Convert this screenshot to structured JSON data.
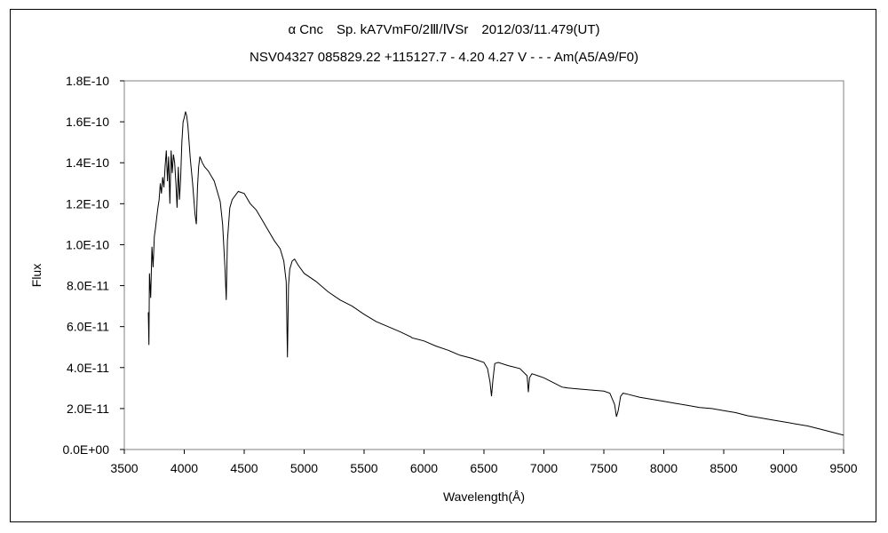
{
  "chart_data": {
    "type": "line",
    "title": "α Cnc　Sp. kA7VmF0/2Ⅲ/ⅣSr　2012/03/11.479(UT)",
    "subtitle": "NSV04327 085829.22 +115127.7 - 4.20 4.27 V - - - Am(A5/A9/F0)",
    "xlabel": "Wavelength(Å)",
    "ylabel": "Flux",
    "xlim": [
      3500,
      9500
    ],
    "ylim": [
      0,
      1.8e-10
    ],
    "xticks": [
      "3500",
      "4000",
      "4500",
      "5000",
      "5500",
      "6000",
      "6500",
      "7000",
      "7500",
      "8000",
      "8500",
      "9000",
      "9500"
    ],
    "yticks": [
      "0.0E+00",
      "2.0E-11",
      "4.0E-11",
      "6.0E-11",
      "8.0E-11",
      "1.0E-10",
      "1.2E-10",
      "1.4E-10",
      "1.6E-10",
      "1.8E-10"
    ],
    "grid": false,
    "legend": "none",
    "line_color": "#000000",
    "series": [
      {
        "x": [
          3700,
          3705,
          3710,
          3720,
          3730,
          3740,
          3750,
          3760,
          3770,
          3780,
          3790,
          3800,
          3810,
          3820,
          3830,
          3840,
          3850,
          3860,
          3870,
          3880,
          3890,
          3900,
          3910,
          3920,
          3930,
          3940,
          3950,
          3960,
          3970,
          3980,
          3990,
          4000,
          4010,
          4020,
          4030,
          4050,
          4070,
          4090,
          4101,
          4110,
          4120,
          4130,
          4150,
          4170,
          4200,
          4250,
          4300,
          4320,
          4340,
          4350,
          4360,
          4380,
          4400,
          4450,
          4500,
          4550,
          4600,
          4650,
          4700,
          4750,
          4800,
          4830,
          4850,
          4861,
          4870,
          4880,
          4900,
          4920,
          4950,
          5000,
          5100,
          5200,
          5300,
          5400,
          5500,
          5600,
          5700,
          5800,
          5890,
          5900,
          6000,
          6100,
          6200,
          6300,
          6400,
          6500,
          6530,
          6550,
          6563,
          6575,
          6590,
          6620,
          6700,
          6800,
          6860,
          6870,
          6880,
          6900,
          6950,
          7000,
          7100,
          7150,
          7200,
          7300,
          7400,
          7500,
          7550,
          7590,
          7605,
          7620,
          7640,
          7660,
          7700,
          7800,
          7900,
          8000,
          8100,
          8200,
          8300,
          8400,
          8500,
          8600,
          8700,
          8800,
          8900,
          9000,
          9100,
          9200,
          9300,
          9400,
          9500
        ],
        "y": [
          6.7e-11,
          5.1e-11,
          8.6e-11,
          7.4e-11,
          9.9e-11,
          8.9e-11,
          1.04e-10,
          1.08e-10,
          1.13e-10,
          1.18e-10,
          1.22e-10,
          1.3e-10,
          1.25e-10,
          1.33e-10,
          1.28e-10,
          1.38e-10,
          1.46e-10,
          1.31e-10,
          1.43e-10,
          1.2e-10,
          1.46e-10,
          1.35e-10,
          1.44e-10,
          1.4e-10,
          1.3e-10,
          1.18e-10,
          1.38e-10,
          1.22e-10,
          1.32e-10,
          1.5e-10,
          1.6e-10,
          1.62e-10,
          1.65e-10,
          1.63e-10,
          1.58e-10,
          1.42e-10,
          1.3e-10,
          1.15e-10,
          1.1e-10,
          1.28e-10,
          1.38e-10,
          1.43e-10,
          1.4e-10,
          1.38e-10,
          1.36e-10,
          1.31e-10,
          1.21e-10,
          1.1e-10,
          8.8e-11,
          7.3e-11,
          1.02e-10,
          1.18e-10,
          1.22e-10,
          1.26e-10,
          1.25e-10,
          1.2e-10,
          1.17e-10,
          1.12e-10,
          1.07e-10,
          1.02e-10,
          9.8e-11,
          9.2e-11,
          8.2e-11,
          4.5e-11,
          8e-11,
          8.8e-11,
          9.2e-11,
          9.3e-11,
          9e-11,
          8.6e-11,
          8.2e-11,
          7.7e-11,
          7.3e-11,
          7e-11,
          6.6e-11,
          6.25e-11,
          6e-11,
          5.75e-11,
          5.5e-11,
          5.45e-11,
          5.3e-11,
          5.05e-11,
          4.85e-11,
          4.6e-11,
          4.45e-11,
          4.25e-11,
          3.95e-11,
          3.3e-11,
          2.6e-11,
          3.4e-11,
          4.2e-11,
          4.25e-11,
          4.1e-11,
          3.95e-11,
          3.6e-11,
          2.8e-11,
          3.5e-11,
          3.7e-11,
          3.6e-11,
          3.5e-11,
          3.2e-11,
          3.05e-11,
          3e-11,
          2.95e-11,
          2.9e-11,
          2.85e-11,
          2.75e-11,
          2.2e-11,
          1.6e-11,
          1.9e-11,
          2.6e-11,
          2.75e-11,
          2.7e-11,
          2.55e-11,
          2.45e-11,
          2.35e-11,
          2.25e-11,
          2.15e-11,
          2.05e-11,
          2e-11,
          1.9e-11,
          1.8e-11,
          1.65e-11,
          1.55e-11,
          1.45e-11,
          1.35e-11,
          1.25e-11,
          1.15e-11,
          1e-11,
          8.5e-12,
          7e-12
        ]
      }
    ]
  }
}
